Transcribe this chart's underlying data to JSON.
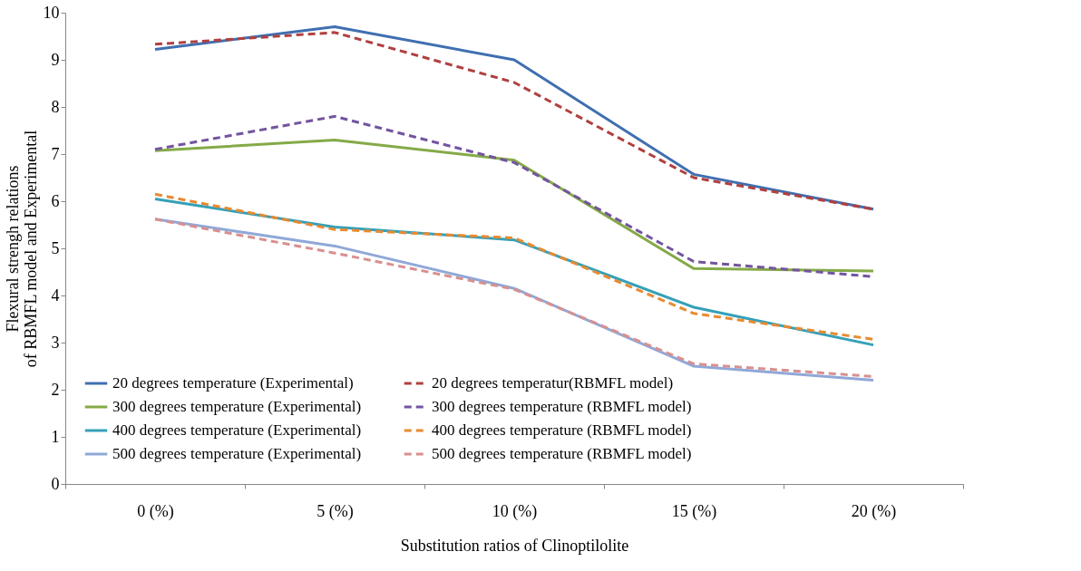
{
  "chart_data": {
    "type": "line",
    "xlabel": "Substitution ratios of Clinoptilolite",
    "ylabel": "Flexural strengh relations of RBMFL model and Experimental",
    "categories": [
      "0 (%)",
      "5 (%)",
      "10 (%)",
      "15 (%)",
      "20 (%)"
    ],
    "ylim": [
      0,
      10
    ],
    "yticks": [
      0,
      1,
      2,
      3,
      4,
      5,
      6,
      7,
      8,
      9,
      10
    ],
    "grid": false,
    "legend": "bottom",
    "marker": "none",
    "series": [
      {
        "name": "20 degrees temperature (Experimental)",
        "color": "#3f6fb0",
        "line_style": "solid",
        "values": [
          9.22,
          9.7,
          9.0,
          6.57,
          5.83
        ]
      },
      {
        "name": "20 degrees temperatur(RBMFL model)",
        "color": "#b04040",
        "line_style": "dashed",
        "values": [
          9.33,
          9.58,
          8.52,
          6.5,
          5.83
        ]
      },
      {
        "name": "300 degrees temperature (Experimental)",
        "color": "#84aa48",
        "line_style": "solid",
        "values": [
          7.07,
          7.3,
          6.87,
          4.57,
          4.52
        ]
      },
      {
        "name": "300 degrees temperature (RBMFL model)",
        "color": "#7454a0",
        "line_style": "dashed",
        "values": [
          7.1,
          7.8,
          6.82,
          4.72,
          4.4
        ]
      },
      {
        "name": "400 degrees temperature (Experimental)",
        "color": "#35a0b8",
        "line_style": "solid",
        "values": [
          6.05,
          5.45,
          5.18,
          3.75,
          2.95
        ]
      },
      {
        "name": "400 degrees temperature (RBMFL model)",
        "color": "#e88a30",
        "line_style": "dashed",
        "values": [
          6.15,
          5.4,
          5.22,
          3.62,
          3.07
        ]
      },
      {
        "name": "500 degrees temperature (Experimental)",
        "color": "#8fa8d8",
        "line_style": "solid",
        "values": [
          5.62,
          5.05,
          4.15,
          2.5,
          2.2
        ]
      },
      {
        "name": "500 degrees temperature (RBMFL model)",
        "color": "#d89090",
        "line_style": "dashed",
        "values": [
          5.62,
          4.9,
          4.13,
          2.55,
          2.28
        ]
      }
    ]
  }
}
